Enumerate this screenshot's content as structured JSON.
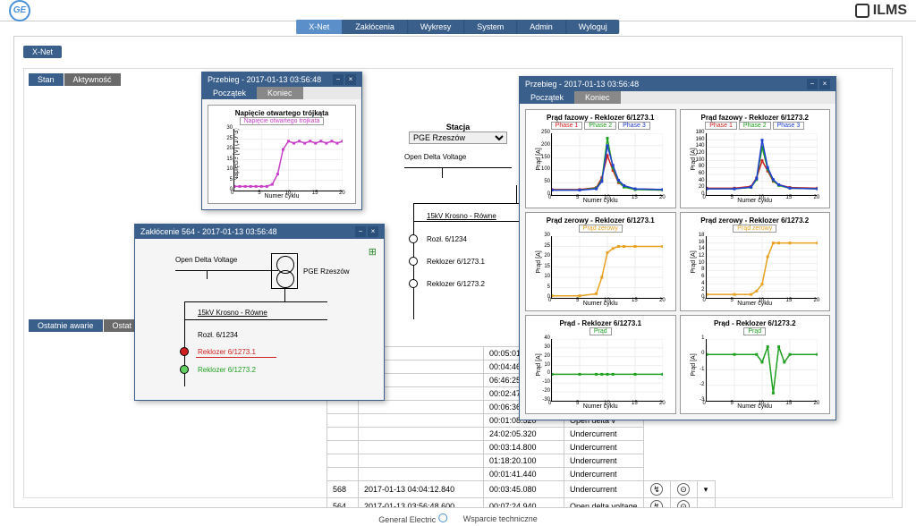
{
  "app": {
    "title": "ILMS"
  },
  "nav": {
    "items": [
      "X-Net",
      "Zakłócenia",
      "Wykresy",
      "System",
      "Admin",
      "Wyloguj"
    ],
    "active_index": 0
  },
  "tabs": {
    "xnet": "X-Net"
  },
  "sub_tabs": {
    "state": "Stan",
    "activity": "Aktywność"
  },
  "station": {
    "label": "Stacja",
    "selected": "PGE Rzeszów"
  },
  "diagram": {
    "open_delta": "Open Delta Voltage",
    "pge": "PGE",
    "feeder": "15kV Krosno - Równe",
    "rozl": "Rozł. 6/1234",
    "rek1": "Reklozer 6/1273.1",
    "rek2": "Reklozer 6/1273.2"
  },
  "bottom_tabs": {
    "recent": "Ostatnie awarie",
    "other": "Ostat"
  },
  "events": {
    "rows": [
      {
        "id": "",
        "time": "",
        "dur": "00:05:01.020",
        "type": "Undercurrent"
      },
      {
        "id": "",
        "time": "",
        "dur": "00:04:46.080",
        "type": "Undercurrent"
      },
      {
        "id": "",
        "time": "",
        "dur": "06:46:25.440",
        "type": "Undercurrent"
      },
      {
        "id": "",
        "time": "",
        "dur": "00:02:47.920",
        "type": "Open delta v"
      },
      {
        "id": "",
        "time": "",
        "dur": "00:06:36.100",
        "type": "Undercurrent"
      },
      {
        "id": "",
        "time": "",
        "dur": "00:01:08.520",
        "type": "Open delta v"
      },
      {
        "id": "",
        "time": "",
        "dur": "24:02:05.320",
        "type": "Undercurrent"
      },
      {
        "id": "",
        "time": "",
        "dur": "00:03:14.800",
        "type": "Undercurrent"
      },
      {
        "id": "",
        "time": "",
        "dur": "01:18:20.100",
        "type": "Undercurrent"
      },
      {
        "id": "",
        "time": "",
        "dur": "00:01:41.440",
        "type": "Undercurrent"
      },
      {
        "id": "568",
        "time": "2017-01-13 04:04:12.840",
        "dur": "00:03:45.080",
        "type": "Undercurrent"
      },
      {
        "id": "564",
        "time": "2017-01-13 03:56:48.600",
        "dur": "00:07:24.940",
        "type": "Open delta voltage"
      }
    ]
  },
  "win1": {
    "title": "Przebieg - 2017-01-13 03:56:48",
    "tabs": {
      "start": "Początek",
      "end": "Koniec"
    },
    "chart": {
      "title": "Napięcie otwartego trójkąta",
      "legend": "Napięcie otwartego trojkata",
      "xlabel": "Numer cyklu",
      "ylabel": "Napięcie [V] (10^3)",
      "xmax": 20,
      "ymax": 30,
      "xticks": [
        0,
        5,
        10,
        15,
        20
      ],
      "yticks": [
        0,
        5,
        10,
        15,
        20,
        25,
        30
      ],
      "line_color": "#c840c8",
      "data": [
        [
          0,
          2
        ],
        [
          1,
          2
        ],
        [
          2,
          2
        ],
        [
          3,
          2
        ],
        [
          4,
          2
        ],
        [
          5,
          2
        ],
        [
          6,
          2
        ],
        [
          7,
          3
        ],
        [
          8,
          8
        ],
        [
          9,
          20
        ],
        [
          10,
          24
        ],
        [
          11,
          23
        ],
        [
          12,
          24
        ],
        [
          13,
          23
        ],
        [
          14,
          24
        ],
        [
          15,
          23
        ],
        [
          16,
          24
        ],
        [
          17,
          23
        ],
        [
          18,
          24
        ],
        [
          19,
          23
        ],
        [
          20,
          24
        ]
      ]
    }
  },
  "win2": {
    "title": "Zakłócenie 564 - 2017-01-13 03:56:48",
    "diagram": {
      "open_delta": "Open Delta Voltage",
      "station": "PGE Rzeszów",
      "feeder": "15kV Krosno - Równe",
      "rozl": "Rozł. 6/1234",
      "rek1": "Reklozer 6/1273.1",
      "rek2": "Reklozer 6/1273.2"
    },
    "colors": {
      "rek1": "#d02020",
      "rek2": "#20a020",
      "rek1_node": "#d02020",
      "rek2_node": "#60d060"
    }
  },
  "win3": {
    "title": "Przebieg - 2017-01-13 03:56:48",
    "tabs": {
      "start": "Początek",
      "end": "Koniec"
    },
    "xlabel": "Numer cyklu",
    "ylabel": "Prąd [A]",
    "phase_legend": [
      "Phase 1",
      "Phase 2",
      "Phase 3"
    ],
    "zero_legend": "Prąd zerowy",
    "prad_legend": "Prąd",
    "colors": {
      "phase1": "#d02020",
      "phase2": "#20a020",
      "phase3": "#2040d0",
      "zero": "#e8a020",
      "prad": "#20a020"
    },
    "charts": [
      {
        "title": "Prąd fazowy - Reklozer 6/1273.1",
        "ymax": 250,
        "yticks": [
          0,
          50,
          100,
          150,
          200,
          250
        ],
        "type": "phase",
        "p1": [
          [
            0,
            22
          ],
          [
            5,
            22
          ],
          [
            8,
            30
          ],
          [
            9,
            70
          ],
          [
            10,
            160
          ],
          [
            11,
            100
          ],
          [
            12,
            50
          ],
          [
            13,
            35
          ],
          [
            15,
            25
          ],
          [
            20,
            22
          ]
        ],
        "p2": [
          [
            0,
            20
          ],
          [
            5,
            20
          ],
          [
            8,
            28
          ],
          [
            9,
            60
          ],
          [
            10,
            230
          ],
          [
            11,
            110
          ],
          [
            12,
            55
          ],
          [
            13,
            32
          ],
          [
            15,
            22
          ],
          [
            20,
            20
          ]
        ],
        "p3": [
          [
            0,
            20
          ],
          [
            5,
            20
          ],
          [
            8,
            25
          ],
          [
            9,
            55
          ],
          [
            10,
            200
          ],
          [
            11,
            120
          ],
          [
            12,
            60
          ],
          [
            13,
            38
          ],
          [
            15,
            25
          ],
          [
            20,
            22
          ]
        ]
      },
      {
        "title": "Prąd fazowy - Reklozer 6/1273.2",
        "ymax": 180,
        "yticks": [
          0,
          20,
          40,
          60,
          80,
          100,
          120,
          140,
          160,
          180
        ],
        "type": "phase",
        "p1": [
          [
            0,
            20
          ],
          [
            5,
            20
          ],
          [
            8,
            25
          ],
          [
            9,
            50
          ],
          [
            10,
            100
          ],
          [
            11,
            70
          ],
          [
            12,
            40
          ],
          [
            13,
            30
          ],
          [
            15,
            22
          ],
          [
            20,
            20
          ]
        ],
        "p2": [
          [
            0,
            18
          ],
          [
            5,
            18
          ],
          [
            8,
            22
          ],
          [
            9,
            45
          ],
          [
            10,
            140
          ],
          [
            11,
            75
          ],
          [
            12,
            42
          ],
          [
            13,
            28
          ],
          [
            15,
            20
          ],
          [
            20,
            18
          ]
        ],
        "p3": [
          [
            0,
            18
          ],
          [
            5,
            18
          ],
          [
            8,
            23
          ],
          [
            9,
            48
          ],
          [
            10,
            160
          ],
          [
            11,
            80
          ],
          [
            12,
            45
          ],
          [
            13,
            30
          ],
          [
            15,
            20
          ],
          [
            20,
            18
          ]
        ]
      },
      {
        "title": "Prąd zerowy - Reklozer 6/1273.1",
        "ymax": 30,
        "yticks": [
          0,
          5,
          10,
          15,
          20,
          25,
          30
        ],
        "type": "zero",
        "d": [
          [
            0,
            1
          ],
          [
            5,
            1
          ],
          [
            8,
            2
          ],
          [
            9,
            10
          ],
          [
            10,
            22
          ],
          [
            11,
            24
          ],
          [
            12,
            25
          ],
          [
            13,
            25
          ],
          [
            15,
            25
          ],
          [
            20,
            25
          ]
        ]
      },
      {
        "title": "Prąd zerowy - Reklozer 6/1273.2",
        "ymax": 18,
        "yticks": [
          0,
          2,
          4,
          6,
          8,
          10,
          12,
          14,
          16,
          18
        ],
        "type": "zero",
        "d": [
          [
            0,
            1
          ],
          [
            5,
            1
          ],
          [
            8,
            1
          ],
          [
            9,
            2
          ],
          [
            10,
            4
          ],
          [
            11,
            12
          ],
          [
            12,
            16
          ],
          [
            13,
            16
          ],
          [
            15,
            16
          ],
          [
            20,
            16
          ]
        ]
      },
      {
        "title": "Prąd - Reklozer 6/1273.1",
        "ymin": -30,
        "ymax": 40,
        "yticks": [
          -30,
          -20,
          -10,
          0,
          10,
          20,
          30,
          40
        ],
        "type": "prad",
        "d": [
          [
            0,
            0
          ],
          [
            5,
            0
          ],
          [
            8,
            0
          ],
          [
            9,
            0
          ],
          [
            10,
            0
          ],
          [
            11,
            0
          ],
          [
            15,
            0
          ],
          [
            20,
            0
          ]
        ]
      },
      {
        "title": "Prąd - Reklozer 6/1273.2",
        "ymin": -3,
        "ymax": 1,
        "yticks": [
          -3,
          -2,
          -1,
          0,
          1
        ],
        "type": "prad",
        "d": [
          [
            0,
            0
          ],
          [
            5,
            0
          ],
          [
            9,
            0
          ],
          [
            10,
            -0.5
          ],
          [
            11,
            0.5
          ],
          [
            12,
            -2.5
          ],
          [
            13,
            0.5
          ],
          [
            14,
            -0.5
          ],
          [
            15,
            0
          ],
          [
            20,
            0
          ]
        ]
      }
    ],
    "xticks": [
      0,
      5,
      10,
      15,
      20
    ]
  },
  "footer": {
    "ge": "General Electric",
    "support": "Wsparcie techniczne"
  }
}
